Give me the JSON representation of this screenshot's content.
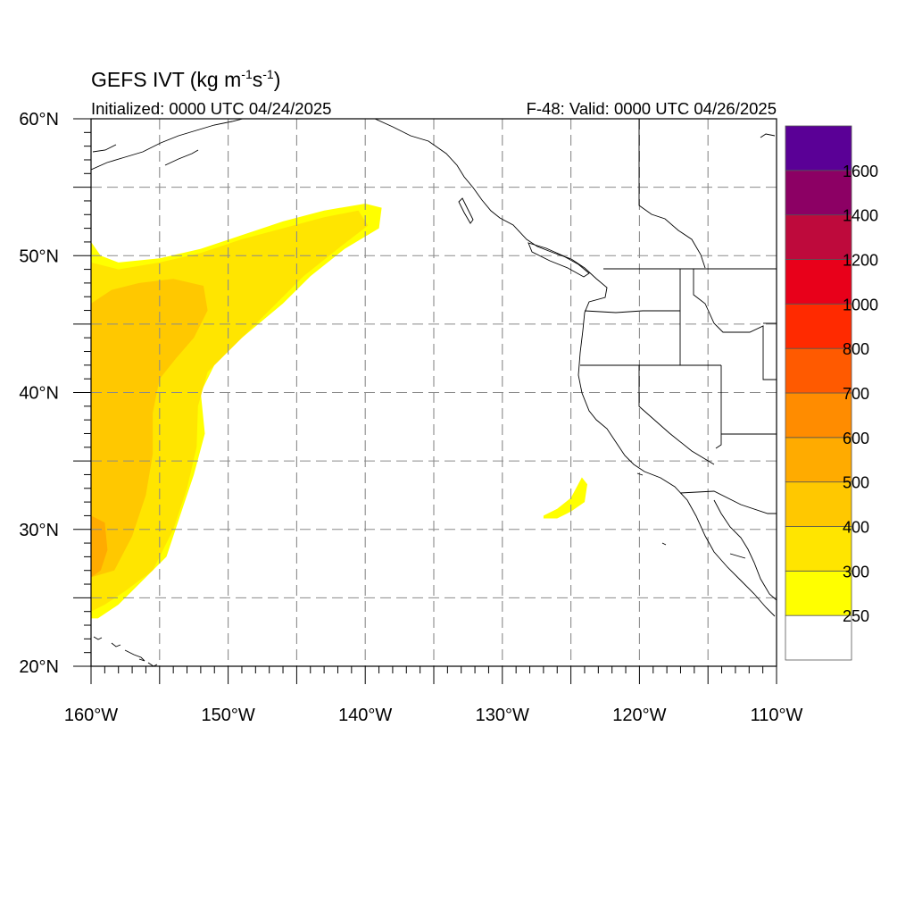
{
  "title": {
    "main": "GEFS IVT (kg m",
    "sup1": "-1",
    "mid": "s",
    "sup2": "-1",
    "close": ")"
  },
  "init_label": "Initialized: 0000 UTC 04/24/2025",
  "valid_label": "F-48: Valid: 0000 UTC 04/26/2025",
  "map": {
    "lon_range": [
      -160,
      -110
    ],
    "lat_range": [
      20,
      60
    ],
    "lon_labels": [
      {
        "lon": -160,
        "text": "160°W"
      },
      {
        "lon": -150,
        "text": "150°W"
      },
      {
        "lon": -140,
        "text": "140°W"
      },
      {
        "lon": -130,
        "text": "130°W"
      },
      {
        "lon": -120,
        "text": "120°W"
      },
      {
        "lon": -110,
        "text": "110°W"
      }
    ],
    "lat_labels": [
      {
        "lat": 60,
        "text": "60°N"
      },
      {
        "lat": 50,
        "text": "50°N"
      },
      {
        "lat": 40,
        "text": "40°N"
      },
      {
        "lat": 30,
        "text": "30°N"
      },
      {
        "lat": 20,
        "text": "20°N"
      }
    ],
    "grid_lons": [
      -155,
      -150,
      -145,
      -140,
      -135,
      -130,
      -125,
      -120,
      -115
    ],
    "grid_lats": [
      25,
      30,
      35,
      40,
      45,
      50,
      55
    ],
    "gridlines": "dashed"
  },
  "colorbar": {
    "levels": [
      250,
      300,
      400,
      500,
      600,
      700,
      800,
      1000,
      1200,
      1400,
      1600
    ],
    "labels": [
      "250",
      "300",
      "400",
      "500",
      "600",
      "700",
      "800",
      "1000",
      "1200",
      "1400",
      "1600"
    ],
    "colors": [
      "#ffffff",
      "#ffff00",
      "#ffe500",
      "#ffc800",
      "#ffab00",
      "#ff8c00",
      "#ff5a00",
      "#ff2a00",
      "#e8001a",
      "#be0a3c",
      "#8c0064",
      "#5a0096"
    ]
  },
  "ivt_regions": [
    {
      "level": "250-300",
      "color": "#ffff00",
      "polygon": [
        [
          -160,
          51
        ],
        [
          -159.3,
          50
        ],
        [
          -158,
          49.5
        ],
        [
          -155,
          49.8
        ],
        [
          -152,
          50.5
        ],
        [
          -149,
          51.5
        ],
        [
          -146,
          52.5
        ],
        [
          -143,
          53.3
        ],
        [
          -140,
          53.8
        ],
        [
          -138.8,
          53.5
        ],
        [
          -139,
          52
        ],
        [
          -141.5,
          50.5
        ],
        [
          -144,
          48.5
        ],
        [
          -146,
          46.5
        ],
        [
          -149,
          44
        ],
        [
          -151,
          42
        ],
        [
          -152,
          40
        ],
        [
          -151.7,
          37
        ],
        [
          -152.5,
          34
        ],
        [
          -153.5,
          31
        ],
        [
          -154.5,
          28
        ],
        [
          -156.5,
          26
        ],
        [
          -158,
          24.5
        ],
        [
          -159.5,
          23.5
        ],
        [
          -160,
          23.5
        ]
      ]
    },
    {
      "level": "300-400",
      "color": "#ffe500",
      "polygon": [
        [
          -160,
          49.5
        ],
        [
          -158,
          49
        ],
        [
          -155,
          49.5
        ],
        [
          -152,
          50.2
        ],
        [
          -149,
          51.2
        ],
        [
          -146,
          52
        ],
        [
          -143,
          52.8
        ],
        [
          -140.5,
          53.3
        ],
        [
          -139.8,
          52.2
        ],
        [
          -142,
          50.5
        ],
        [
          -144.5,
          48.5
        ],
        [
          -147,
          46
        ],
        [
          -149.5,
          43.5
        ],
        [
          -151.5,
          41.5
        ],
        [
          -152.2,
          39
        ],
        [
          -152.3,
          36
        ],
        [
          -153,
          33
        ],
        [
          -154,
          30
        ],
        [
          -155.5,
          27
        ],
        [
          -157.5,
          25.5
        ],
        [
          -159,
          24.5
        ],
        [
          -160,
          24
        ]
      ]
    },
    {
      "level": "400-500",
      "color": "#ffc800",
      "polygon": [
        [
          -160,
          46.5
        ],
        [
          -158.5,
          47.5
        ],
        [
          -156.5,
          48
        ],
        [
          -154,
          48.3
        ],
        [
          -151.8,
          47.8
        ],
        [
          -151.5,
          46
        ],
        [
          -152.5,
          44
        ],
        [
          -153.8,
          42.5
        ],
        [
          -155,
          41
        ],
        [
          -155.5,
          38.5
        ],
        [
          -155.5,
          35.5
        ],
        [
          -156,
          32.5
        ],
        [
          -157,
          29.5
        ],
        [
          -158.3,
          27
        ],
        [
          -160,
          26.5
        ]
      ]
    },
    {
      "level": "500-600",
      "color": "#ffab00",
      "polygon": [
        [
          -160,
          31
        ],
        [
          -159,
          30.5
        ],
        [
          -158.8,
          28.5
        ],
        [
          -159.3,
          27
        ],
        [
          -160,
          26.5
        ]
      ]
    },
    {
      "level": "250-300",
      "color": "#ffff00",
      "polygon": [
        [
          -127,
          31
        ],
        [
          -126,
          31.5
        ],
        [
          -125,
          32.3
        ],
        [
          -124.2,
          33.8
        ],
        [
          -123.8,
          33.3
        ],
        [
          -124,
          32
        ],
        [
          -125,
          31.3
        ],
        [
          -126,
          30.8
        ],
        [
          -127,
          30.8
        ]
      ]
    }
  ]
}
